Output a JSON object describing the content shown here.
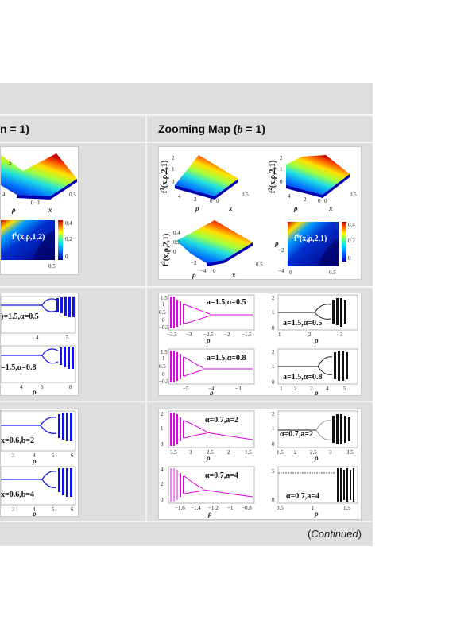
{
  "table": {
    "left_header": "n = 1)",
    "right_header_text": "Zooming Map (",
    "right_header_var": "b",
    "right_header_tail": " = 1)",
    "continued": "Continued"
  },
  "colors": {
    "band": "#dedede",
    "magenta": "#e000e0",
    "blue": "#1414e6",
    "black": "#111111"
  },
  "row1": {
    "left": {
      "surface_ticks": [
        "5",
        "4",
        "0",
        "0",
        "0.5"
      ],
      "rho": "ρ",
      "x": "x",
      "map_label": "f",
      "map_sup": "6",
      "map_args": "(x,ρ,1,2)",
      "cbar_ticks": [
        "0.4",
        "0.2",
        "0"
      ],
      "xtick_end": "0.5"
    },
    "right": {
      "f1_label": "f",
      "f1_sup": "1",
      "f1_args": "(x,ρ,2,1)",
      "f1_zt": [
        "2",
        "1",
        "0"
      ],
      "f1_xt": [
        "4",
        "2",
        "0",
        "0",
        "0.5"
      ],
      "f2_label": "f",
      "f2_sup": "2",
      "f2_args": "(x,ρ,2,1)",
      "f2_zt": [
        "2",
        "1",
        "0"
      ],
      "f2_xt": [
        "4",
        "2",
        "0",
        "0",
        "0.5"
      ],
      "f3_label": "f",
      "f3_sup": "3",
      "f3_args": "(x,ρ,2,1)",
      "f3_zt": [
        "0.4",
        "0.2",
        "0"
      ],
      "f3_xt": [
        "−2",
        "−4",
        "0",
        "0.5"
      ],
      "f6_label": "f",
      "f6_sup": "6",
      "f6_args": "(x,ρ,2,1)",
      "f6_yt": [
        "−2",
        "−4"
      ],
      "f6_xt": [
        "0",
        "0.5"
      ],
      "f6_cbar": [
        "0.4",
        "0.2",
        "0"
      ],
      "rho": "ρ",
      "x": "x"
    }
  },
  "row2": {
    "left": {
      "p1_ann": ")=1.5,α=0.5",
      "p1_xt": [
        "4",
        "5"
      ],
      "p2_ann": "=1.5,α=0.8",
      "p2_xt": [
        "4",
        "6",
        "8"
      ],
      "rho": "ρ"
    },
    "right": {
      "a_ann": "a=1.5,α=0.5",
      "a_xt": [
        "−3.5",
        "−3",
        "−2.5",
        "−2",
        "−1.5"
      ],
      "a_yt": [
        "1.5",
        "1",
        "0.5",
        "0",
        "−0.5"
      ],
      "b_ann": "a=1.5,α=0.5",
      "b_xt": [
        "1",
        "2",
        "3"
      ],
      "b_yt": [
        "2",
        "1",
        "0"
      ],
      "c_ann": "a=1.5,α=0.8",
      "c_xt": [
        "−5",
        "−4",
        "−3"
      ],
      "c_yt": [
        "1.5",
        "1",
        "0.5",
        "0",
        "−0.5"
      ],
      "d_ann": "a=1.5,α=0.8",
      "d_xt": [
        "1",
        "2",
        "3",
        "4",
        "5"
      ],
      "d_yt": [
        "2",
        "1",
        "0"
      ],
      "rho": "ρ",
      "x": "x"
    }
  },
  "row3": {
    "left": {
      "p1_ann": "x=0.6,b=2",
      "p1_xt": [
        "3",
        "4",
        "5",
        "6"
      ],
      "p2_ann": "x=0.6,b=4",
      "p2_xt": [
        "3",
        "4",
        "5",
        "6"
      ],
      "rho": "ρ"
    },
    "right": {
      "a_ann": "α=0.7,a=2",
      "a_xt": [
        "−3.5",
        "−3",
        "−2.5",
        "−2",
        "−1.5"
      ],
      "a_yt": [
        "2",
        "1",
        "0"
      ],
      "b_ann": "α=0.7,a=2",
      "b_xt": [
        "1.5",
        "2",
        "2.5",
        "3",
        "3.5"
      ],
      "b_yt": [
        "2",
        "1",
        "0"
      ],
      "c_ann": "α=0.7,a=4",
      "c_xt": [
        "−1.6",
        "−1.4",
        "−1.2",
        "−1",
        "−0.8"
      ],
      "c_yt": [
        "4",
        "2",
        "0"
      ],
      "d_ann": "α=0.7,a=4",
      "d_xt": [
        "0.5",
        "1",
        "1.5"
      ],
      "d_yt": [
        "5",
        "0"
      ],
      "rho": "ρ",
      "x": "x"
    }
  }
}
